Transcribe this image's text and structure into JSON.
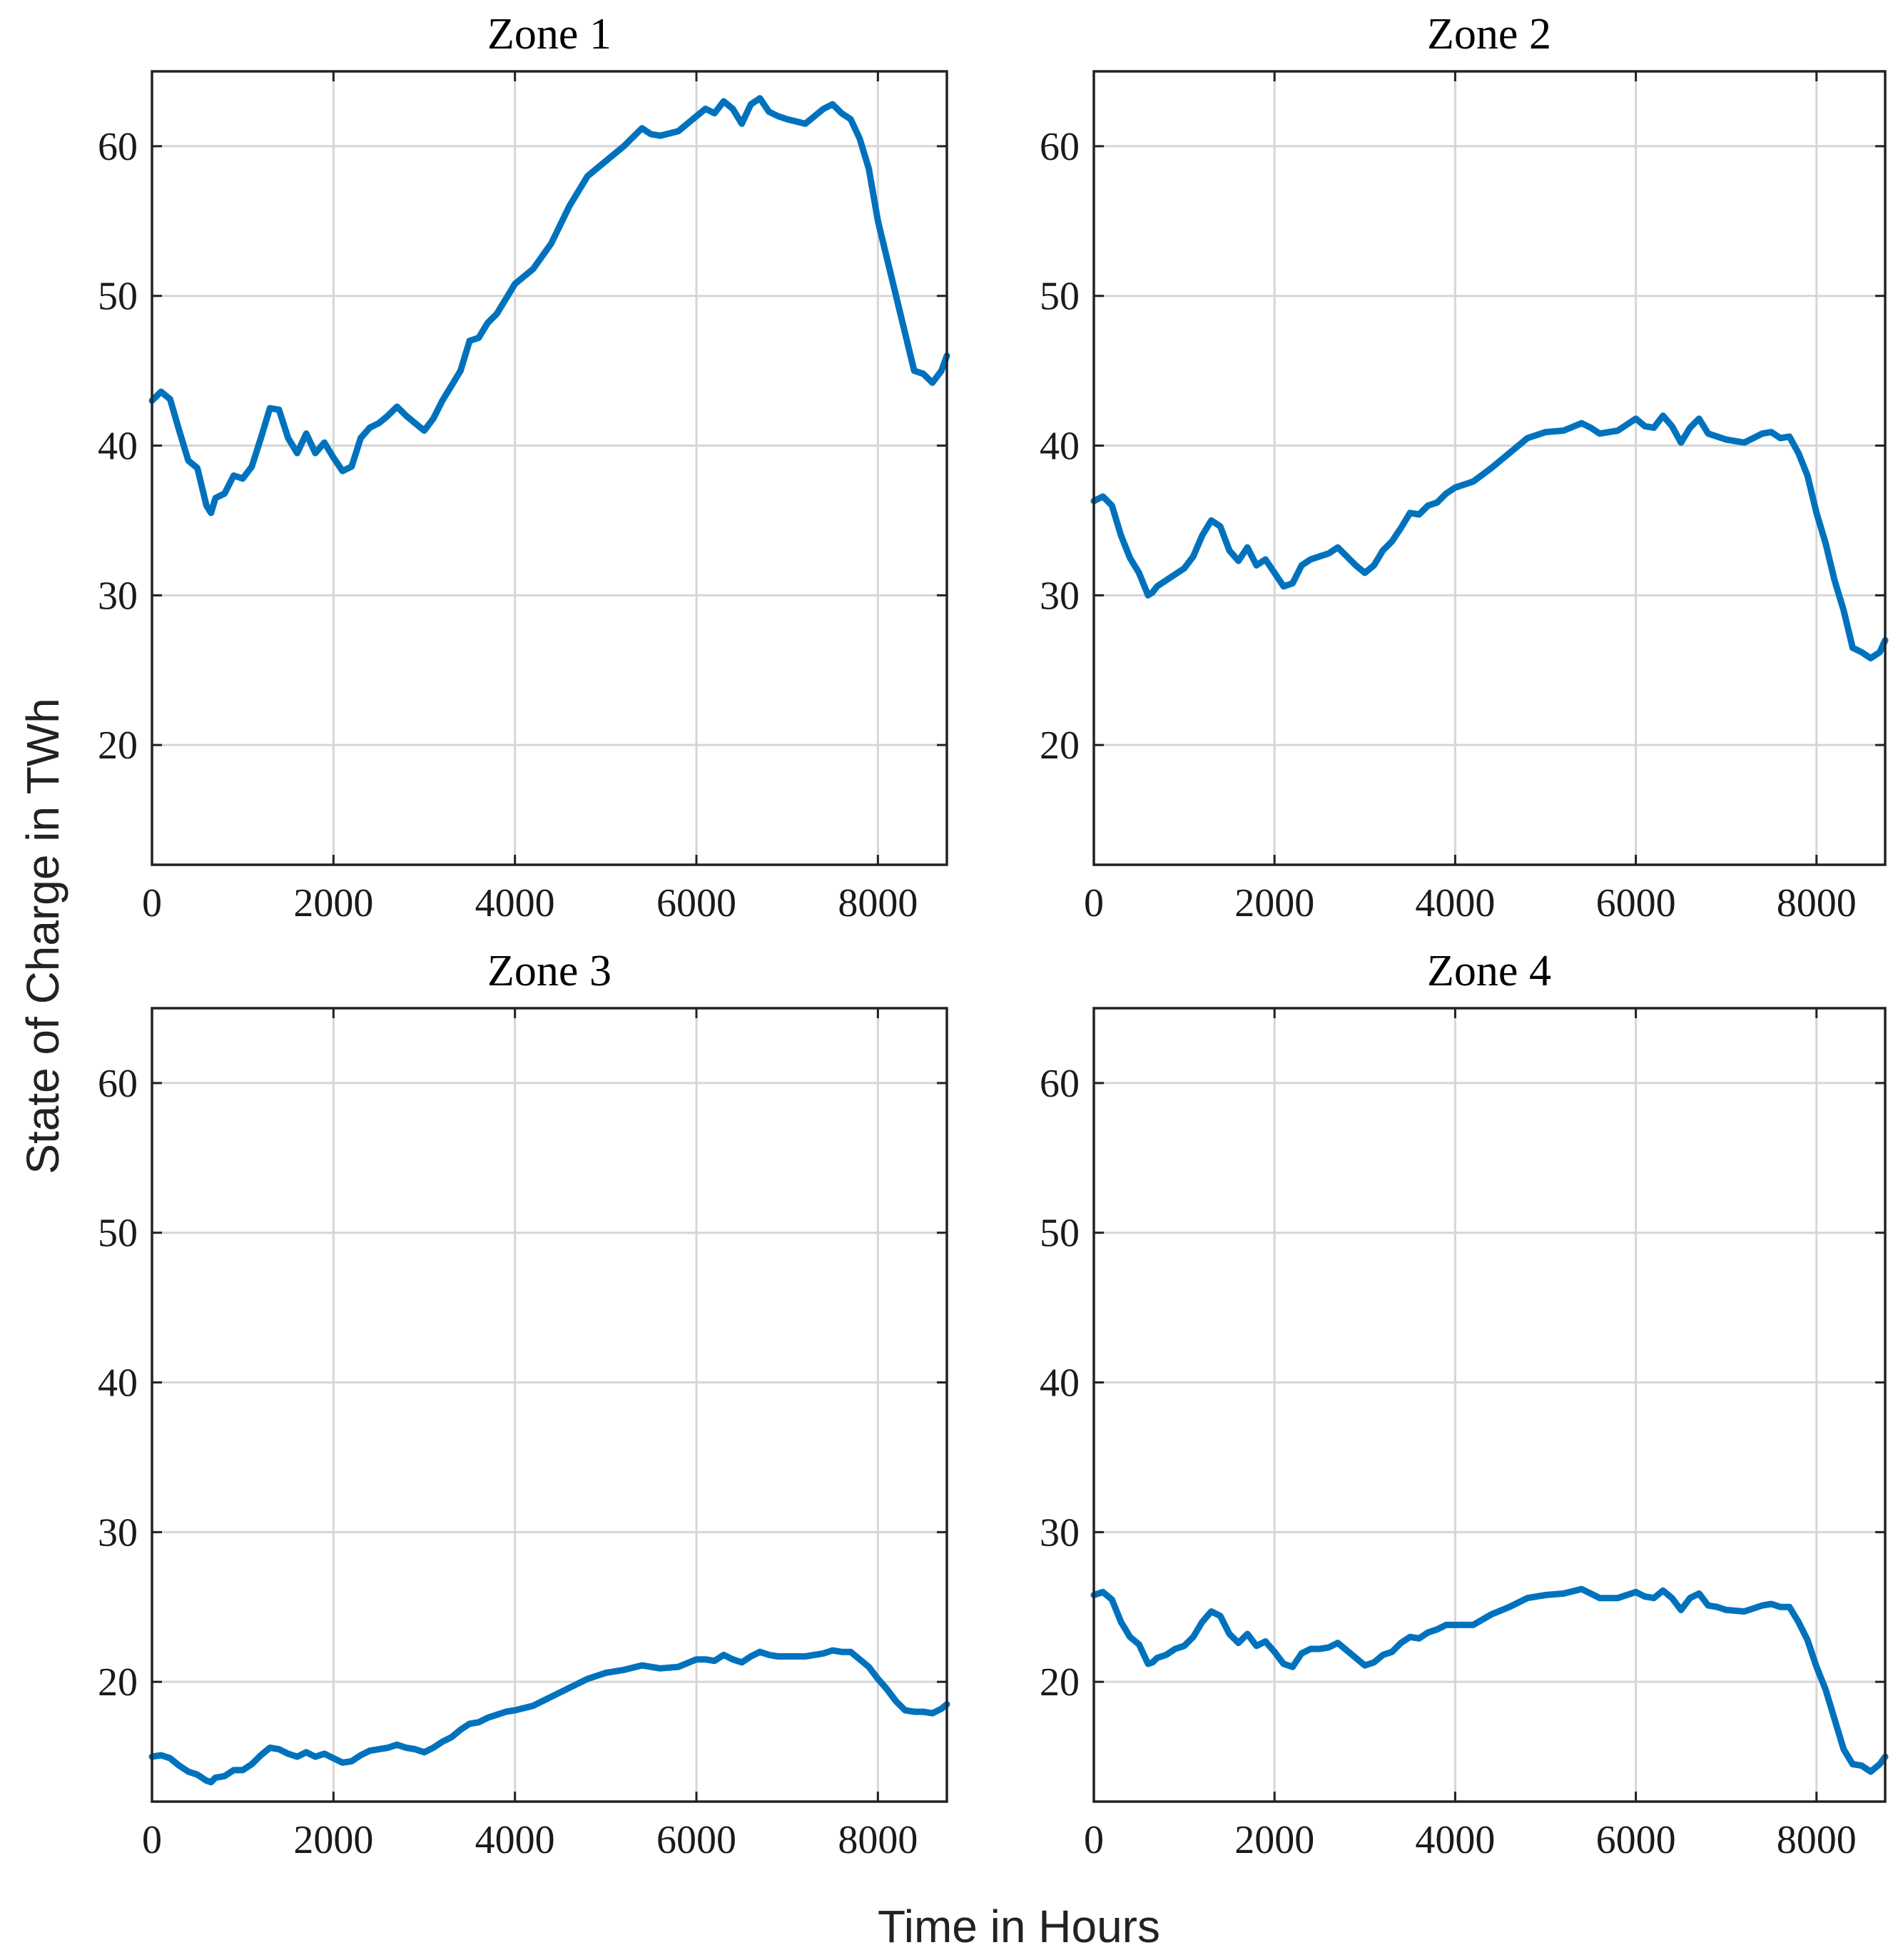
{
  "figure": {
    "ylabel": "State of Charge in TWh",
    "xlabel": "Time in Hours",
    "line_color": "#0072BD"
  },
  "chart_data": [
    {
      "type": "line",
      "title": "Zone 1",
      "xlim": [
        0,
        8760
      ],
      "ylim": [
        12,
        65
      ],
      "xticks": [
        0,
        2000,
        4000,
        6000,
        8000
      ],
      "yticks": [
        20,
        30,
        40,
        50,
        60
      ],
      "xtick_labels": [
        "0",
        "2000",
        "4000",
        "6000",
        "8000"
      ],
      "ytick_labels": [
        "20",
        "30",
        "40",
        "50",
        "60"
      ],
      "grid": true,
      "series": [
        {
          "name": "Zone 1",
          "x": [
            0,
            100,
            200,
            300,
            400,
            500,
            600,
            650,
            700,
            800,
            900,
            1000,
            1100,
            1200,
            1300,
            1400,
            1500,
            1600,
            1700,
            1800,
            1900,
            2000,
            2100,
            2200,
            2300,
            2400,
            2500,
            2600,
            2700,
            2800,
            2900,
            3000,
            3100,
            3200,
            3300,
            3400,
            3500,
            3600,
            3700,
            3800,
            3900,
            4000,
            4200,
            4400,
            4600,
            4800,
            5000,
            5200,
            5400,
            5500,
            5600,
            5800,
            6000,
            6100,
            6200,
            6300,
            6400,
            6500,
            6600,
            6700,
            6800,
            6900,
            7000,
            7200,
            7400,
            7500,
            7600,
            7700,
            7800,
            7900,
            8000,
            8100,
            8200,
            8300,
            8400,
            8500,
            8600,
            8700,
            8760
          ],
          "values": [
            43.0,
            43.6,
            43.1,
            41.0,
            39.0,
            38.5,
            36.0,
            35.5,
            36.5,
            36.8,
            38.0,
            37.8,
            38.6,
            40.5,
            42.5,
            42.4,
            40.5,
            39.5,
            40.8,
            39.5,
            40.2,
            39.2,
            38.3,
            38.6,
            40.5,
            41.2,
            41.5,
            42.0,
            42.6,
            42.0,
            41.5,
            41.0,
            41.8,
            43.0,
            44.0,
            45.0,
            47.0,
            47.2,
            48.2,
            48.8,
            49.8,
            50.8,
            51.8,
            53.5,
            56.0,
            58.0,
            59.0,
            60.0,
            61.2,
            60.8,
            60.7,
            61.0,
            62.0,
            62.5,
            62.2,
            63.0,
            62.5,
            61.5,
            62.8,
            63.2,
            62.3,
            62.0,
            61.8,
            61.5,
            62.5,
            62.8,
            62.2,
            61.8,
            60.5,
            58.5,
            55.0,
            52.5,
            50.0,
            47.5,
            45.0,
            44.8,
            44.2,
            45.0,
            46.0
          ]
        }
      ]
    },
    {
      "type": "line",
      "title": "Zone 2",
      "xlim": [
        0,
        8760
      ],
      "ylim": [
        12,
        65
      ],
      "xticks": [
        0,
        2000,
        4000,
        6000,
        8000
      ],
      "yticks": [
        20,
        30,
        40,
        50,
        60
      ],
      "xtick_labels": [
        "0",
        "2000",
        "4000",
        "6000",
        "8000"
      ],
      "ytick_labels": [
        "20",
        "30",
        "40",
        "50",
        "60"
      ],
      "grid": true,
      "series": [
        {
          "name": "Zone 2",
          "x": [
            0,
            100,
            200,
            300,
            400,
            500,
            600,
            650,
            700,
            800,
            900,
            1000,
            1100,
            1200,
            1300,
            1400,
            1500,
            1600,
            1700,
            1800,
            1900,
            2000,
            2100,
            2200,
            2300,
            2400,
            2500,
            2600,
            2700,
            2800,
            2900,
            3000,
            3100,
            3200,
            3300,
            3400,
            3500,
            3600,
            3700,
            3800,
            3900,
            4000,
            4200,
            4400,
            4600,
            4800,
            5000,
            5200,
            5400,
            5500,
            5600,
            5800,
            6000,
            6100,
            6200,
            6300,
            6400,
            6500,
            6600,
            6700,
            6800,
            6900,
            7000,
            7200,
            7400,
            7500,
            7600,
            7700,
            7800,
            7900,
            8000,
            8100,
            8200,
            8300,
            8400,
            8500,
            8600,
            8700,
            8760
          ],
          "values": [
            36.3,
            36.6,
            36.0,
            34.0,
            32.5,
            31.5,
            30.0,
            30.2,
            30.6,
            31.0,
            31.4,
            31.8,
            32.6,
            34.0,
            35.0,
            34.6,
            33.0,
            32.3,
            33.2,
            32.0,
            32.4,
            31.5,
            30.6,
            30.8,
            32.0,
            32.4,
            32.6,
            32.8,
            33.2,
            32.6,
            32.0,
            31.5,
            32.0,
            33.0,
            33.6,
            34.5,
            35.5,
            35.4,
            36.0,
            36.2,
            36.8,
            37.2,
            37.6,
            38.5,
            39.5,
            40.5,
            40.9,
            41.0,
            41.5,
            41.2,
            40.8,
            41.0,
            41.8,
            41.3,
            41.2,
            42.0,
            41.3,
            40.2,
            41.2,
            41.8,
            40.8,
            40.6,
            40.4,
            40.2,
            40.8,
            40.9,
            40.5,
            40.6,
            39.5,
            38.0,
            35.5,
            33.5,
            31.0,
            29.0,
            26.5,
            26.2,
            25.8,
            26.2,
            27.0
          ]
        }
      ]
    },
    {
      "type": "line",
      "title": "Zone 3",
      "xlim": [
        0,
        8760
      ],
      "ylim": [
        12,
        65
      ],
      "xticks": [
        0,
        2000,
        4000,
        6000,
        8000
      ],
      "yticks": [
        20,
        30,
        40,
        50,
        60
      ],
      "xtick_labels": [
        "0",
        "2000",
        "4000",
        "6000",
        "8000"
      ],
      "ytick_labels": [
        "20",
        "30",
        "40",
        "50",
        "60"
      ],
      "grid": true,
      "series": [
        {
          "name": "Zone 3",
          "x": [
            0,
            100,
            200,
            300,
            400,
            500,
            600,
            650,
            700,
            800,
            900,
            1000,
            1100,
            1200,
            1300,
            1400,
            1500,
            1600,
            1700,
            1800,
            1900,
            2000,
            2100,
            2200,
            2300,
            2400,
            2500,
            2600,
            2700,
            2800,
            2900,
            3000,
            3100,
            3200,
            3300,
            3400,
            3500,
            3600,
            3700,
            3800,
            3900,
            4000,
            4200,
            4400,
            4600,
            4800,
            5000,
            5200,
            5400,
            5500,
            5600,
            5800,
            6000,
            6100,
            6200,
            6300,
            6400,
            6500,
            6600,
            6700,
            6800,
            6900,
            7000,
            7200,
            7400,
            7500,
            7600,
            7700,
            7800,
            7900,
            8000,
            8100,
            8200,
            8300,
            8400,
            8500,
            8600,
            8700,
            8760
          ],
          "values": [
            15.0,
            15.1,
            14.9,
            14.4,
            14.0,
            13.8,
            13.4,
            13.3,
            13.6,
            13.7,
            14.1,
            14.1,
            14.5,
            15.1,
            15.6,
            15.5,
            15.2,
            15.0,
            15.3,
            15.0,
            15.2,
            14.9,
            14.6,
            14.7,
            15.1,
            15.4,
            15.5,
            15.6,
            15.8,
            15.6,
            15.5,
            15.3,
            15.6,
            16.0,
            16.3,
            16.8,
            17.2,
            17.3,
            17.6,
            17.8,
            18.0,
            18.1,
            18.4,
            19.0,
            19.6,
            20.2,
            20.6,
            20.8,
            21.1,
            21.0,
            20.9,
            21.0,
            21.5,
            21.5,
            21.4,
            21.8,
            21.5,
            21.3,
            21.7,
            22.0,
            21.8,
            21.7,
            21.7,
            21.7,
            21.9,
            22.1,
            22.0,
            22.0,
            21.5,
            21.0,
            20.2,
            19.5,
            18.7,
            18.1,
            18.0,
            18.0,
            17.9,
            18.2,
            18.5
          ]
        }
      ]
    },
    {
      "type": "line",
      "title": "Zone 4",
      "xlim": [
        0,
        8760
      ],
      "ylim": [
        12,
        65
      ],
      "xticks": [
        0,
        2000,
        4000,
        6000,
        8000
      ],
      "yticks": [
        20,
        30,
        40,
        50,
        60
      ],
      "xtick_labels": [
        "0",
        "2000",
        "4000",
        "6000",
        "8000"
      ],
      "ytick_labels": [
        "20",
        "30",
        "40",
        "50",
        "60"
      ],
      "grid": true,
      "series": [
        {
          "name": "Zone 4",
          "x": [
            0,
            100,
            200,
            300,
            400,
            500,
            600,
            650,
            700,
            800,
            900,
            1000,
            1100,
            1200,
            1300,
            1400,
            1500,
            1600,
            1700,
            1800,
            1900,
            2000,
            2100,
            2200,
            2300,
            2400,
            2500,
            2600,
            2700,
            2800,
            2900,
            3000,
            3100,
            3200,
            3300,
            3400,
            3500,
            3600,
            3700,
            3800,
            3900,
            4000,
            4200,
            4400,
            4600,
            4800,
            5000,
            5200,
            5400,
            5500,
            5600,
            5800,
            6000,
            6100,
            6200,
            6300,
            6400,
            6500,
            6600,
            6700,
            6800,
            6900,
            7000,
            7200,
            7400,
            7500,
            7600,
            7700,
            7800,
            7900,
            8000,
            8100,
            8200,
            8300,
            8400,
            8500,
            8600,
            8700,
            8760
          ],
          "values": [
            25.8,
            26.0,
            25.5,
            24.0,
            23.0,
            22.5,
            21.2,
            21.3,
            21.6,
            21.8,
            22.2,
            22.4,
            23.0,
            24.0,
            24.7,
            24.4,
            23.2,
            22.6,
            23.2,
            22.4,
            22.7,
            22.0,
            21.2,
            21.0,
            21.9,
            22.2,
            22.2,
            22.3,
            22.6,
            22.1,
            21.6,
            21.1,
            21.3,
            21.8,
            22.0,
            22.6,
            23.0,
            22.9,
            23.3,
            23.5,
            23.8,
            23.8,
            23.8,
            24.5,
            25.0,
            25.6,
            25.8,
            25.9,
            26.2,
            25.9,
            25.6,
            25.6,
            26.0,
            25.7,
            25.6,
            26.1,
            25.6,
            24.8,
            25.6,
            25.9,
            25.1,
            25.0,
            24.8,
            24.7,
            25.1,
            25.2,
            25.0,
            25.0,
            24.0,
            22.8,
            21.0,
            19.5,
            17.5,
            15.5,
            14.5,
            14.4,
            14.0,
            14.5,
            15.0
          ]
        }
      ]
    }
  ]
}
